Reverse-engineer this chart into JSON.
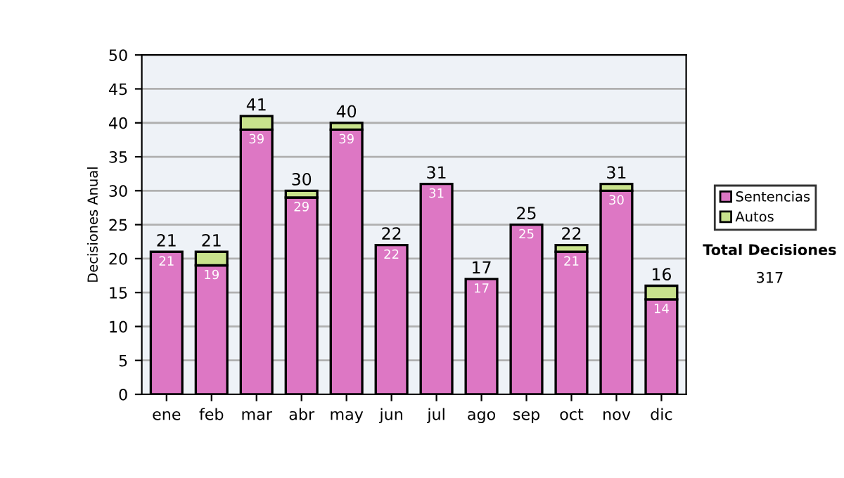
{
  "chart_data": {
    "type": "bar",
    "stacked": true,
    "ylabel": "Decisiones Anual",
    "categories": [
      "ene",
      "feb",
      "mar",
      "abr",
      "may",
      "jun",
      "jul",
      "ago",
      "sep",
      "oct",
      "nov",
      "dic"
    ],
    "series": [
      {
        "name": "Sentencias",
        "color": "#dd77c4",
        "values": [
          21,
          19,
          39,
          29,
          39,
          22,
          31,
          17,
          25,
          21,
          30,
          14
        ],
        "value_labels": [
          "21",
          "19",
          "39",
          "29",
          "39",
          "22",
          "31",
          "17",
          "25",
          "21",
          "30",
          "14"
        ]
      },
      {
        "name": "Autos",
        "color": "#c8e28c",
        "values": [
          null,
          2,
          2,
          1,
          1,
          null,
          null,
          null,
          null,
          1,
          1,
          2
        ]
      }
    ],
    "totals": [
      "21",
      "21",
      "41",
      "30",
      "40",
      "22",
      "31",
      "17",
      "25",
      "22",
      "31",
      "16"
    ],
    "ylim": [
      0,
      50
    ],
    "yticks": [
      0,
      5,
      10,
      15,
      20,
      25,
      30,
      35,
      40,
      45,
      50
    ],
    "grid": "y",
    "legend": "right",
    "annotations": [
      "Total Decisiones",
      "317"
    ]
  }
}
